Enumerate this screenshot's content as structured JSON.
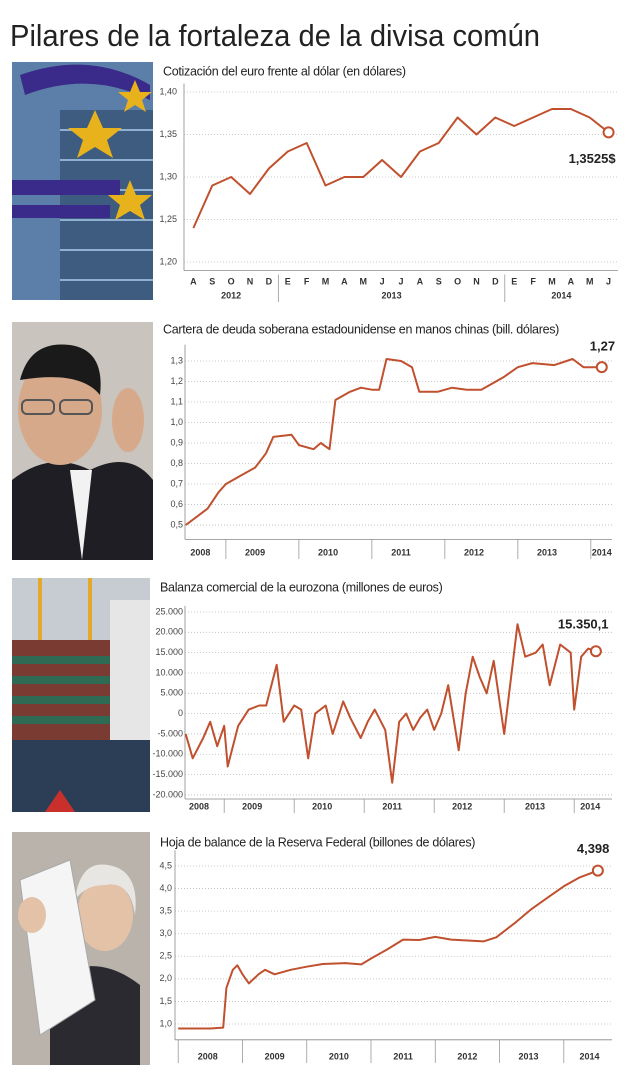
{
  "title": "Pilares de la fortaleza de la divisa común",
  "chart_data": [
    {
      "type": "line",
      "title": "Cotización del euro frente al dólar (en dólares)",
      "color": "#c0502e",
      "grid": true,
      "categories": [
        "A",
        "S",
        "O",
        "N",
        "D",
        "E",
        "F",
        "M",
        "A",
        "M",
        "J",
        "J",
        "A",
        "S",
        "O",
        "N",
        "D",
        "E",
        "F",
        "M",
        "A",
        "M",
        "J"
      ],
      "years": [
        "2012",
        "2013",
        "2014"
      ],
      "values": [
        1.24,
        1.29,
        1.3,
        1.28,
        1.31,
        1.33,
        1.34,
        1.29,
        1.3,
        1.3,
        1.32,
        1.3,
        1.33,
        1.34,
        1.37,
        1.35,
        1.37,
        1.36,
        1.37,
        1.38,
        1.38,
        1.37,
        1.3525
      ],
      "end_label": "1,3525$",
      "ylim": [
        1.19,
        1.41
      ],
      "yticks": [
        {
          "value": 1.2,
          "label": "1,20"
        },
        {
          "value": 1.25,
          "label": "1,25"
        },
        {
          "value": 1.3,
          "label": "1,30"
        },
        {
          "value": 1.35,
          "label": "1,35"
        },
        {
          "value": 1.4,
          "label": "1,40"
        }
      ]
    },
    {
      "type": "line",
      "title": "Cartera de deuda soberana estadounidense en manos chinas (bill. dólares)",
      "color": "#c0502e",
      "grid": true,
      "x": [
        2008.45,
        2008.6,
        2008.75,
        2008.9,
        2009.0,
        2009.2,
        2009.4,
        2009.55,
        2009.65,
        2009.9,
        2010.0,
        2010.2,
        2010.3,
        2010.42,
        2010.5,
        2010.7,
        2010.85,
        2011.0,
        2011.1,
        2011.2,
        2011.4,
        2011.55,
        2011.65,
        2011.9,
        2012.1,
        2012.3,
        2012.5,
        2012.8,
        2013.0,
        2013.2,
        2013.5,
        2013.75,
        2013.9,
        2014.15
      ],
      "values": [
        0.5,
        0.54,
        0.58,
        0.66,
        0.7,
        0.74,
        0.78,
        0.85,
        0.93,
        0.94,
        0.89,
        0.87,
        0.9,
        0.87,
        1.11,
        1.15,
        1.17,
        1.16,
        1.16,
        1.31,
        1.3,
        1.27,
        1.15,
        1.15,
        1.17,
        1.16,
        1.16,
        1.22,
        1.27,
        1.29,
        1.28,
        1.31,
        1.27,
        1.27
      ],
      "end_label": "1,27",
      "xlim": [
        2008.44,
        2014.29
      ],
      "xticks": [
        {
          "value": 2008.65,
          "label": "2008"
        },
        {
          "value": 2009.4,
          "label": "2009"
        },
        {
          "value": 2010.4,
          "label": "2010"
        },
        {
          "value": 2011.4,
          "label": "2011"
        },
        {
          "value": 2012.4,
          "label": "2012"
        },
        {
          "value": 2013.4,
          "label": "2013"
        },
        {
          "value": 2014.15,
          "label": "2014"
        }
      ],
      "ylim": [
        0.43,
        1.38
      ],
      "yticks": [
        {
          "value": 0.5,
          "label": "0,5"
        },
        {
          "value": 0.6,
          "label": "0,6"
        },
        {
          "value": 0.7,
          "label": "0,7"
        },
        {
          "value": 0.8,
          "label": "0,8"
        },
        {
          "value": 0.9,
          "label": "0,9"
        },
        {
          "value": 1.0,
          "label": "1,0"
        },
        {
          "value": 1.1,
          "label": "1,1"
        },
        {
          "value": 1.2,
          "label": "1,2"
        },
        {
          "value": 1.3,
          "label": "1,3"
        }
      ]
    },
    {
      "type": "line",
      "title": "Balanza comercial de la eurozona  (millones de euros)",
      "color": "#c0502e",
      "grid": true,
      "x": [
        2008.45,
        2008.55,
        2008.7,
        2008.8,
        2008.9,
        2009.0,
        2009.05,
        2009.2,
        2009.35,
        2009.5,
        2009.6,
        2009.75,
        2009.85,
        2010.0,
        2010.1,
        2010.2,
        2010.3,
        2010.45,
        2010.55,
        2010.7,
        2010.8,
        2010.95,
        2011.05,
        2011.15,
        2011.3,
        2011.4,
        2011.5,
        2011.6,
        2011.7,
        2011.8,
        2011.9,
        2012.0,
        2012.1,
        2012.2,
        2012.35,
        2012.45,
        2012.55,
        2012.65,
        2012.75,
        2012.85,
        2013.0,
        2013.19,
        2013.3,
        2013.45,
        2013.55,
        2013.65,
        2013.8,
        2013.95,
        2014.0,
        2014.1,
        2014.2,
        2014.31
      ],
      "values": [
        -5000,
        -11000,
        -6000,
        -2000,
        -8000,
        -3000,
        -13000,
        -3000,
        1000,
        2000,
        2000,
        12000,
        -2000,
        2000,
        1000,
        -11000,
        0,
        2000,
        -5000,
        3000,
        -1000,
        -6000,
        -2000,
        1000,
        -4000,
        -17000,
        -2000,
        0,
        -4000,
        -1000,
        1000,
        -4000,
        0,
        7000,
        -9000,
        5000,
        14000,
        9000,
        5000,
        13000,
        -5000,
        22000,
        14000,
        15000,
        17000,
        7000,
        17000,
        15000,
        1000,
        14000,
        16000,
        15350.1
      ],
      "end_label": "15.350,1",
      "xlim": [
        2008.44,
        2014.54
      ],
      "xticks": [
        {
          "value": 2008.64,
          "label": "2008"
        },
        {
          "value": 2009.4,
          "label": "2009"
        },
        {
          "value": 2010.4,
          "label": "2010"
        },
        {
          "value": 2011.4,
          "label": "2011"
        },
        {
          "value": 2012.4,
          "label": "2012"
        },
        {
          "value": 2013.44,
          "label": "2013"
        },
        {
          "value": 2014.23,
          "label": "2014"
        }
      ],
      "ylim": [
        -21000,
        26500
      ],
      "yticks": [
        {
          "value": -20000,
          "label": "-20.000"
        },
        {
          "value": -15000,
          "label": "-15.000"
        },
        {
          "value": -10000,
          "label": "-10.000"
        },
        {
          "value": -5000,
          "label": "-5.000"
        },
        0,
        {
          "value": 5000,
          "label": "5.000"
        },
        {
          "value": 10000,
          "label": "10.000"
        },
        {
          "value": 15000,
          "label": "15.000"
        },
        {
          "value": 20000,
          "label": "20.000"
        },
        {
          "value": 25000,
          "label": "25.000"
        }
      ]
    },
    {
      "type": "line",
      "title": "Hoja de balance de la Reserva Federal (billones de dólares)",
      "color": "#c0502e",
      "grid": true,
      "x": [
        2008.0,
        2008.5,
        2008.7,
        2008.75,
        2008.85,
        2008.92,
        2009.0,
        2009.1,
        2009.25,
        2009.35,
        2009.5,
        2009.75,
        2010.0,
        2010.25,
        2010.6,
        2010.85,
        2011.0,
        2011.25,
        2011.5,
        2011.75,
        2012.0,
        2012.25,
        2012.5,
        2012.75,
        2012.95,
        2013.25,
        2013.5,
        2013.75,
        2014.0,
        2014.25,
        2014.53
      ],
      "values": [
        0.9,
        0.9,
        0.92,
        1.8,
        2.2,
        2.3,
        2.1,
        1.9,
        2.1,
        2.2,
        2.1,
        2.2,
        2.27,
        2.33,
        2.35,
        2.32,
        2.45,
        2.65,
        2.87,
        2.86,
        2.93,
        2.87,
        2.85,
        2.83,
        2.92,
        3.25,
        3.55,
        3.8,
        4.05,
        4.25,
        4.398
      ],
      "end_label": "4,398",
      "xlim": [
        2007.95,
        2014.75
      ],
      "xticks": [
        {
          "value": 2008.46,
          "label": "2008"
        },
        {
          "value": 2009.5,
          "label": "2009"
        },
        {
          "value": 2010.5,
          "label": "2010"
        },
        {
          "value": 2011.5,
          "label": "2011"
        },
        {
          "value": 2012.5,
          "label": "2012"
        },
        {
          "value": 2013.45,
          "label": "2013"
        },
        {
          "value": 2014.4,
          "label": "2014"
        }
      ],
      "ylim": [
        0.65,
        4.85
      ],
      "yticks": [
        {
          "value": 1.0,
          "label": "1,0"
        },
        {
          "value": 1.5,
          "label": "1,5"
        },
        {
          "value": 2.0,
          "label": "2,0"
        },
        {
          "value": 2.5,
          "label": "2,5"
        },
        {
          "value": 3.0,
          "label": "3,0"
        },
        {
          "value": 3.5,
          "label": "3,5"
        },
        {
          "value": 4.0,
          "label": "4,0"
        },
        {
          "value": 4.5,
          "label": "4,5"
        }
      ]
    }
  ]
}
